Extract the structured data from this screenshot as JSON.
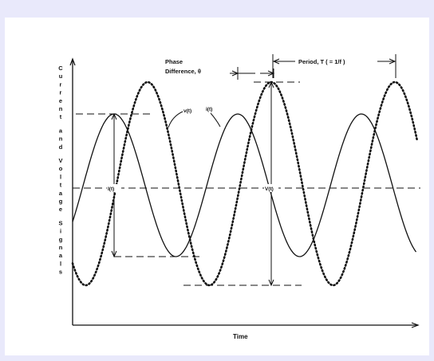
{
  "figure": {
    "y_axis_label": "Current and Voltage Signals",
    "x_axis_label": "Time",
    "phase_label_line1": "Phase",
    "phase_label_line2": "Difference, θ",
    "period_label": "Period, T ( = 1/f )",
    "voltage_label": "v(t)",
    "current_label": "i(t)",
    "current_amplitude_label": "I(t)",
    "voltage_amplitude_label": "V(t)"
  },
  "colors": {
    "ink": "#111111",
    "frame": "#ffffff",
    "background": "#e9e9fb"
  }
}
